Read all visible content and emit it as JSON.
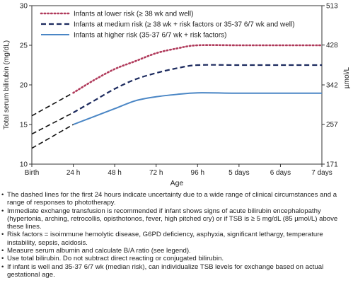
{
  "chart_data": {
    "type": "line",
    "title": "",
    "xlabel": "Age",
    "ylabel": "Total serum bilirubin (mg/dL)",
    "ylabel_right": "µmol/L",
    "categories": [
      "Birth",
      "24 h",
      "48 h",
      "72 h",
      "96 h",
      "5 days",
      "6 days",
      "7 days"
    ],
    "x_days": [
      0,
      1,
      2,
      3,
      4,
      5,
      6,
      7
    ],
    "ylim": [
      10,
      30
    ],
    "yticks": [
      10,
      15,
      20,
      25,
      30
    ],
    "ylim_right": [
      171,
      513
    ],
    "yticks_right": [
      "171",
      "257",
      "342",
      "428",
      "513"
    ],
    "grid": false,
    "legend_position": "top-left",
    "series": [
      {
        "name": "Infants at lower risk (≥ 38 wk and well)",
        "color": "#b03a5b",
        "style": "dotted",
        "uncertain_segment": [
          [
            0,
            16.1
          ],
          [
            1,
            19.0
          ]
        ],
        "points": [
          [
            1,
            19.0
          ],
          [
            1.5,
            20.6
          ],
          [
            2,
            22.0
          ],
          [
            2.5,
            23.0
          ],
          [
            3,
            24.0
          ],
          [
            3.5,
            24.6
          ],
          [
            4,
            25.0
          ],
          [
            5,
            25.0
          ],
          [
            6,
            25.0
          ],
          [
            7,
            25.0
          ]
        ]
      },
      {
        "name": "Infants at medium risk (≥ 38 wk + risk factors or 35-37 6/7 wk and well)",
        "color": "#1c2a5e",
        "style": "dashed",
        "uncertain_segment": [
          [
            0,
            13.8
          ],
          [
            1,
            16.5
          ]
        ],
        "points": [
          [
            1,
            16.5
          ],
          [
            1.5,
            18.0
          ],
          [
            2,
            19.5
          ],
          [
            2.5,
            20.7
          ],
          [
            3,
            21.5
          ],
          [
            3.5,
            22.1
          ],
          [
            4,
            22.5
          ],
          [
            5,
            22.5
          ],
          [
            6,
            22.5
          ],
          [
            7,
            22.5
          ]
        ]
      },
      {
        "name": "Infants at higher risk (35-37 6/7 wk + risk factors)",
        "color": "#4a86c5",
        "style": "solid",
        "uncertain_segment": [
          [
            0,
            12.0
          ],
          [
            1,
            15.0
          ]
        ],
        "points": [
          [
            1,
            15.0
          ],
          [
            1.5,
            16.0
          ],
          [
            2,
            17.0
          ],
          [
            2.5,
            18.0
          ],
          [
            3,
            18.5
          ],
          [
            3.5,
            18.8
          ],
          [
            4,
            19.0
          ],
          [
            5,
            18.95
          ],
          [
            6,
            18.95
          ],
          [
            7,
            18.95
          ]
        ]
      }
    ]
  },
  "notes": [
    "The dashed lines for the first 24 hours indicate uncertainty due to a wide range of clinical circumstances and a range of responses to phototherapy.",
    "Immediate exchange transfusion is recommended if infant shows signs of acute bilirubin encephalopathy (hypertonia, arching, retrocollis, opisthotonos, fever, high pitched cry) or if TSB is ≥ 5 mg/dL (85 µmol/L) above these lines.",
    "Risk factors = isoimmune hemolytic disease, G6PD deficiency, asphyxia, significant lethargy, temperature instability, sepsis, acidosis.",
    "Measure serum albumin and calculate B/A ratio (see legend).",
    "Use total bilirubin. Do not subtract direct reacting or conjugated bilirubin.",
    "If infant is well and 35-37 6/7 wk (median risk), can individualize TSB levels for exchange based on actual gestational age."
  ]
}
